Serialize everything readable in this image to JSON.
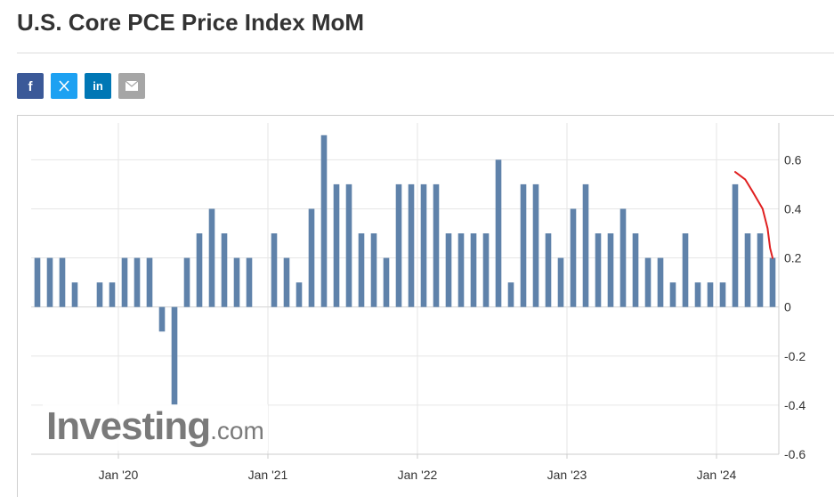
{
  "page": {
    "title": "U.S. Core PCE Price Index MoM"
  },
  "share": [
    {
      "name": "facebook",
      "glyph": "f",
      "color": "#3b5998"
    },
    {
      "name": "x-twitter",
      "glyph": "𝕏",
      "color": "#1da1f2"
    },
    {
      "name": "linkedin",
      "glyph": "in",
      "color": "#0077b5"
    },
    {
      "name": "email",
      "glyph": "",
      "color": "#a6a6a6"
    }
  ],
  "watermark": {
    "main": "Investing",
    "sub": ".com"
  },
  "chart_data": {
    "type": "bar",
    "bar_color": "#5f82aa",
    "annotation_color": "#e02020",
    "ylim": [
      -0.6,
      0.75
    ],
    "yticks": [
      -0.6,
      -0.4,
      -0.2,
      0,
      0.2,
      0.4,
      0.6
    ],
    "ytick_labels": [
      "-0.6",
      "-0.4",
      "-0.2",
      "0",
      "0.2",
      "0.4",
      "0.6"
    ],
    "xtick_labels": [
      "Jan '20",
      "Jan '21",
      "Jan '22",
      "Jan '23",
      "Jan '24"
    ],
    "xtick_bar_index": [
      6.5,
      18.5,
      30.5,
      42.5,
      54.5
    ],
    "grid": true,
    "y_axis_position": "right",
    "values": [
      0.2,
      0.2,
      0.2,
      0.1,
      0.0,
      0.1,
      0.1,
      0.2,
      0.2,
      0.2,
      -0.1,
      -0.4,
      0.2,
      0.3,
      0.4,
      0.3,
      0.2,
      0.2,
      0.0,
      0.3,
      0.2,
      0.1,
      0.4,
      0.7,
      0.5,
      0.5,
      0.3,
      0.3,
      0.2,
      0.5,
      0.5,
      0.5,
      0.5,
      0.3,
      0.3,
      0.3,
      0.3,
      0.6,
      0.1,
      0.5,
      0.5,
      0.3,
      0.2,
      0.4,
      0.5,
      0.3,
      0.3,
      0.4,
      0.3,
      0.2,
      0.2,
      0.1,
      0.3,
      0.1,
      0.1,
      0.1,
      0.5,
      0.3,
      0.3,
      0.2
    ],
    "annotation": {
      "type": "freehand-curve",
      "from_bar": 56,
      "to_bar": 59,
      "points": [
        [
          56,
          0.55
        ],
        [
          56.8,
          0.52
        ],
        [
          57.4,
          0.47
        ],
        [
          58.2,
          0.4
        ],
        [
          58.6,
          0.32
        ],
        [
          58.8,
          0.24
        ],
        [
          59,
          0.2
        ]
      ]
    }
  }
}
